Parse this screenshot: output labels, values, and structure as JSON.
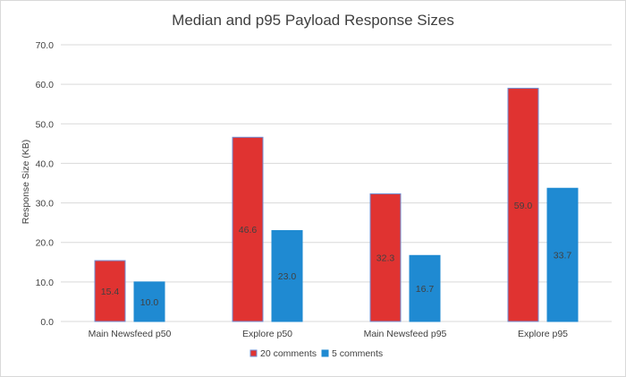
{
  "chart_data": {
    "type": "bar",
    "title": "Median and p95 Payload Response Sizes",
    "xlabel": "",
    "ylabel": "Response Size (KB)",
    "ylim": [
      0,
      70
    ],
    "yticks": [
      "0.0",
      "10.0",
      "20.0",
      "30.0",
      "40.0",
      "50.0",
      "60.0",
      "70.0"
    ],
    "categories": [
      "Main Newsfeed p50",
      "Explore p50",
      "Main Newsfeed p95",
      "Explore p95"
    ],
    "series": [
      {
        "name": "20 comments",
        "color": "#e03331",
        "border": "#6f8fd6",
        "values": [
          15.4,
          46.6,
          32.3,
          59.0
        ],
        "labels": [
          "15.4",
          "46.6",
          "32.3",
          "59.0"
        ]
      },
      {
        "name": "5 comments",
        "color": "#1f8ad2",
        "border": "#1f8ad2",
        "values": [
          10.0,
          23.0,
          16.7,
          33.7
        ],
        "labels": [
          "10.0",
          "23.0",
          "16.7",
          "33.7"
        ]
      }
    ],
    "grid": true,
    "legend_position": "bottom"
  }
}
